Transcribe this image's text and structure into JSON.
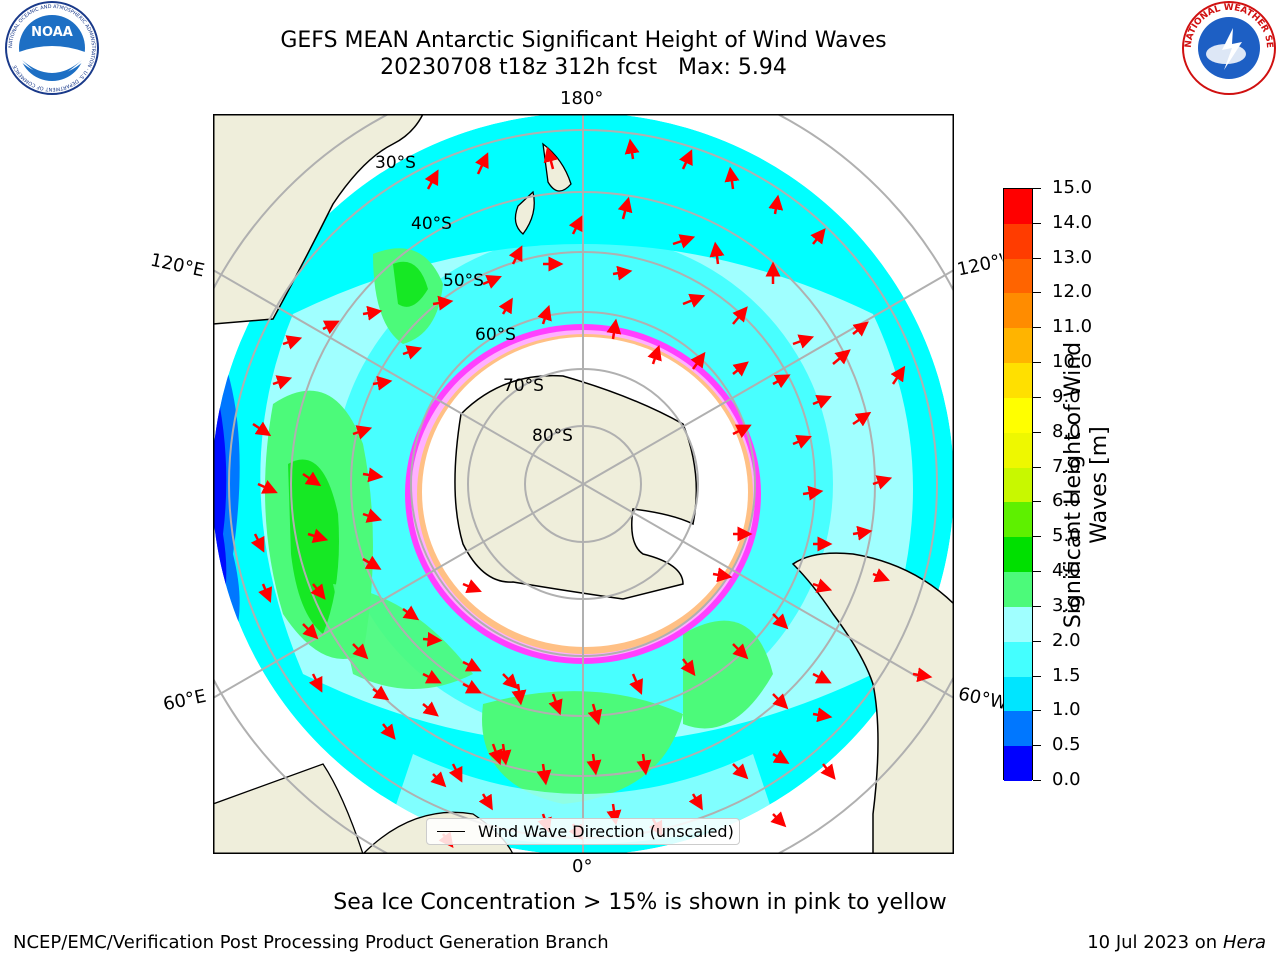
{
  "header": {
    "title_line1": "GEFS MEAN Antarctic Significant Height of Wind Waves",
    "title_line2": "20230708 t18z 312h fcst   Max: 5.94"
  },
  "logos": {
    "noaa": {
      "icon": "noaa-logo-icon",
      "text": "NOAA",
      "ring_text": "NATIONAL OCEANIC AND ATMOSPHERIC ADMINISTRATION · U.S. DEPARTMENT OF COMMERCE"
    },
    "nws": {
      "icon": "nws-logo-icon",
      "ring_text": "NATIONAL WEATHER SERVICE"
    }
  },
  "map": {
    "projection": "south-polar-stereographic",
    "longitude_labels": {
      "top": "180°",
      "bottom": "0°",
      "left_upper": "120°E",
      "left_lower": "60°E",
      "right_upper": "120°W",
      "right_lower": "60°W"
    },
    "latitude_labels": [
      "30°S",
      "40°S",
      "50°S",
      "60°S",
      "70°S",
      "80°S"
    ],
    "colors": {
      "land": "#efeedb",
      "ice_free_polar": "#ffffff",
      "arrows": "#ff0000",
      "grid": "#b0b0b0"
    },
    "legend": {
      "label": "Wind Wave Direction (unscaled)"
    }
  },
  "colorbar": {
    "title": "Significant Height of Wind Waves [m]",
    "ticks": [
      "0.0",
      "0.5",
      "1.0",
      "1.5",
      "2.0",
      "3.0",
      "4.0",
      "5.0",
      "6.0",
      "7.0",
      "8.0",
      "9.0",
      "10.0",
      "11.0",
      "12.0",
      "13.0",
      "14.0",
      "15.0"
    ],
    "colors": [
      "#0000ff",
      "#0077ff",
      "#00e5ff",
      "#44ffff",
      "#a0ffff",
      "#4cfa7a",
      "#00e000",
      "#5ef000",
      "#c8f800",
      "#eef800",
      "#ffff00",
      "#ffe000",
      "#ffb400",
      "#ff8c00",
      "#ff6400",
      "#ff3c00",
      "#ff0000"
    ]
  },
  "notes": {
    "ice": "Sea Ice Concentration > 15% is shown in pink to yellow"
  },
  "footer": {
    "left": "NCEP/EMC/Verification Post Processing Product Generation Branch",
    "date": "10 Jul 2023 on ",
    "machine": "Hera"
  }
}
